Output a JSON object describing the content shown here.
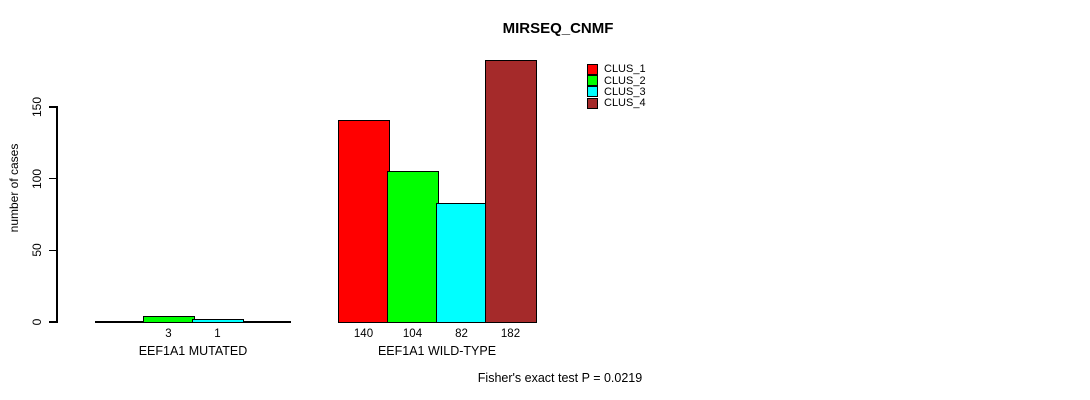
{
  "chart_data": {
    "type": "bar",
    "title": "MIRSEQ_CNMF",
    "ylabel": "number of cases",
    "xlabel": "",
    "yticks": [
      0,
      50,
      100,
      150
    ],
    "ylim": [
      0,
      185
    ],
    "grid": false,
    "categories": [
      "EEF1A1 MUTATED",
      "EEF1A1 WILD-TYPE"
    ],
    "series": [
      {
        "name": "CLUS_1",
        "color": "#ff0000",
        "values": [
          0,
          140
        ]
      },
      {
        "name": "CLUS_2",
        "color": "#00ff00",
        "values": [
          3,
          104
        ]
      },
      {
        "name": "CLUS_3",
        "color": "#00ffff",
        "values": [
          1,
          82
        ]
      },
      {
        "name": "CLUS_4",
        "color": "#a52a2a",
        "values": [
          0,
          182
        ]
      }
    ],
    "bar_value_labels": [
      [
        "",
        "3",
        "1",
        ""
      ],
      [
        "140",
        "104",
        "82",
        "182"
      ]
    ],
    "legend": {
      "position": "top-right-inside",
      "entries": [
        "CLUS_1",
        "CLUS_2",
        "CLUS_3",
        "CLUS_4"
      ],
      "colors": [
        "#ff0000",
        "#00ff00",
        "#00ffff",
        "#a52a2a"
      ]
    },
    "annotation": "Fisher's exact test P = 0.0219",
    "bar_border_color": "#000000",
    "background_color": "#ffffff"
  }
}
